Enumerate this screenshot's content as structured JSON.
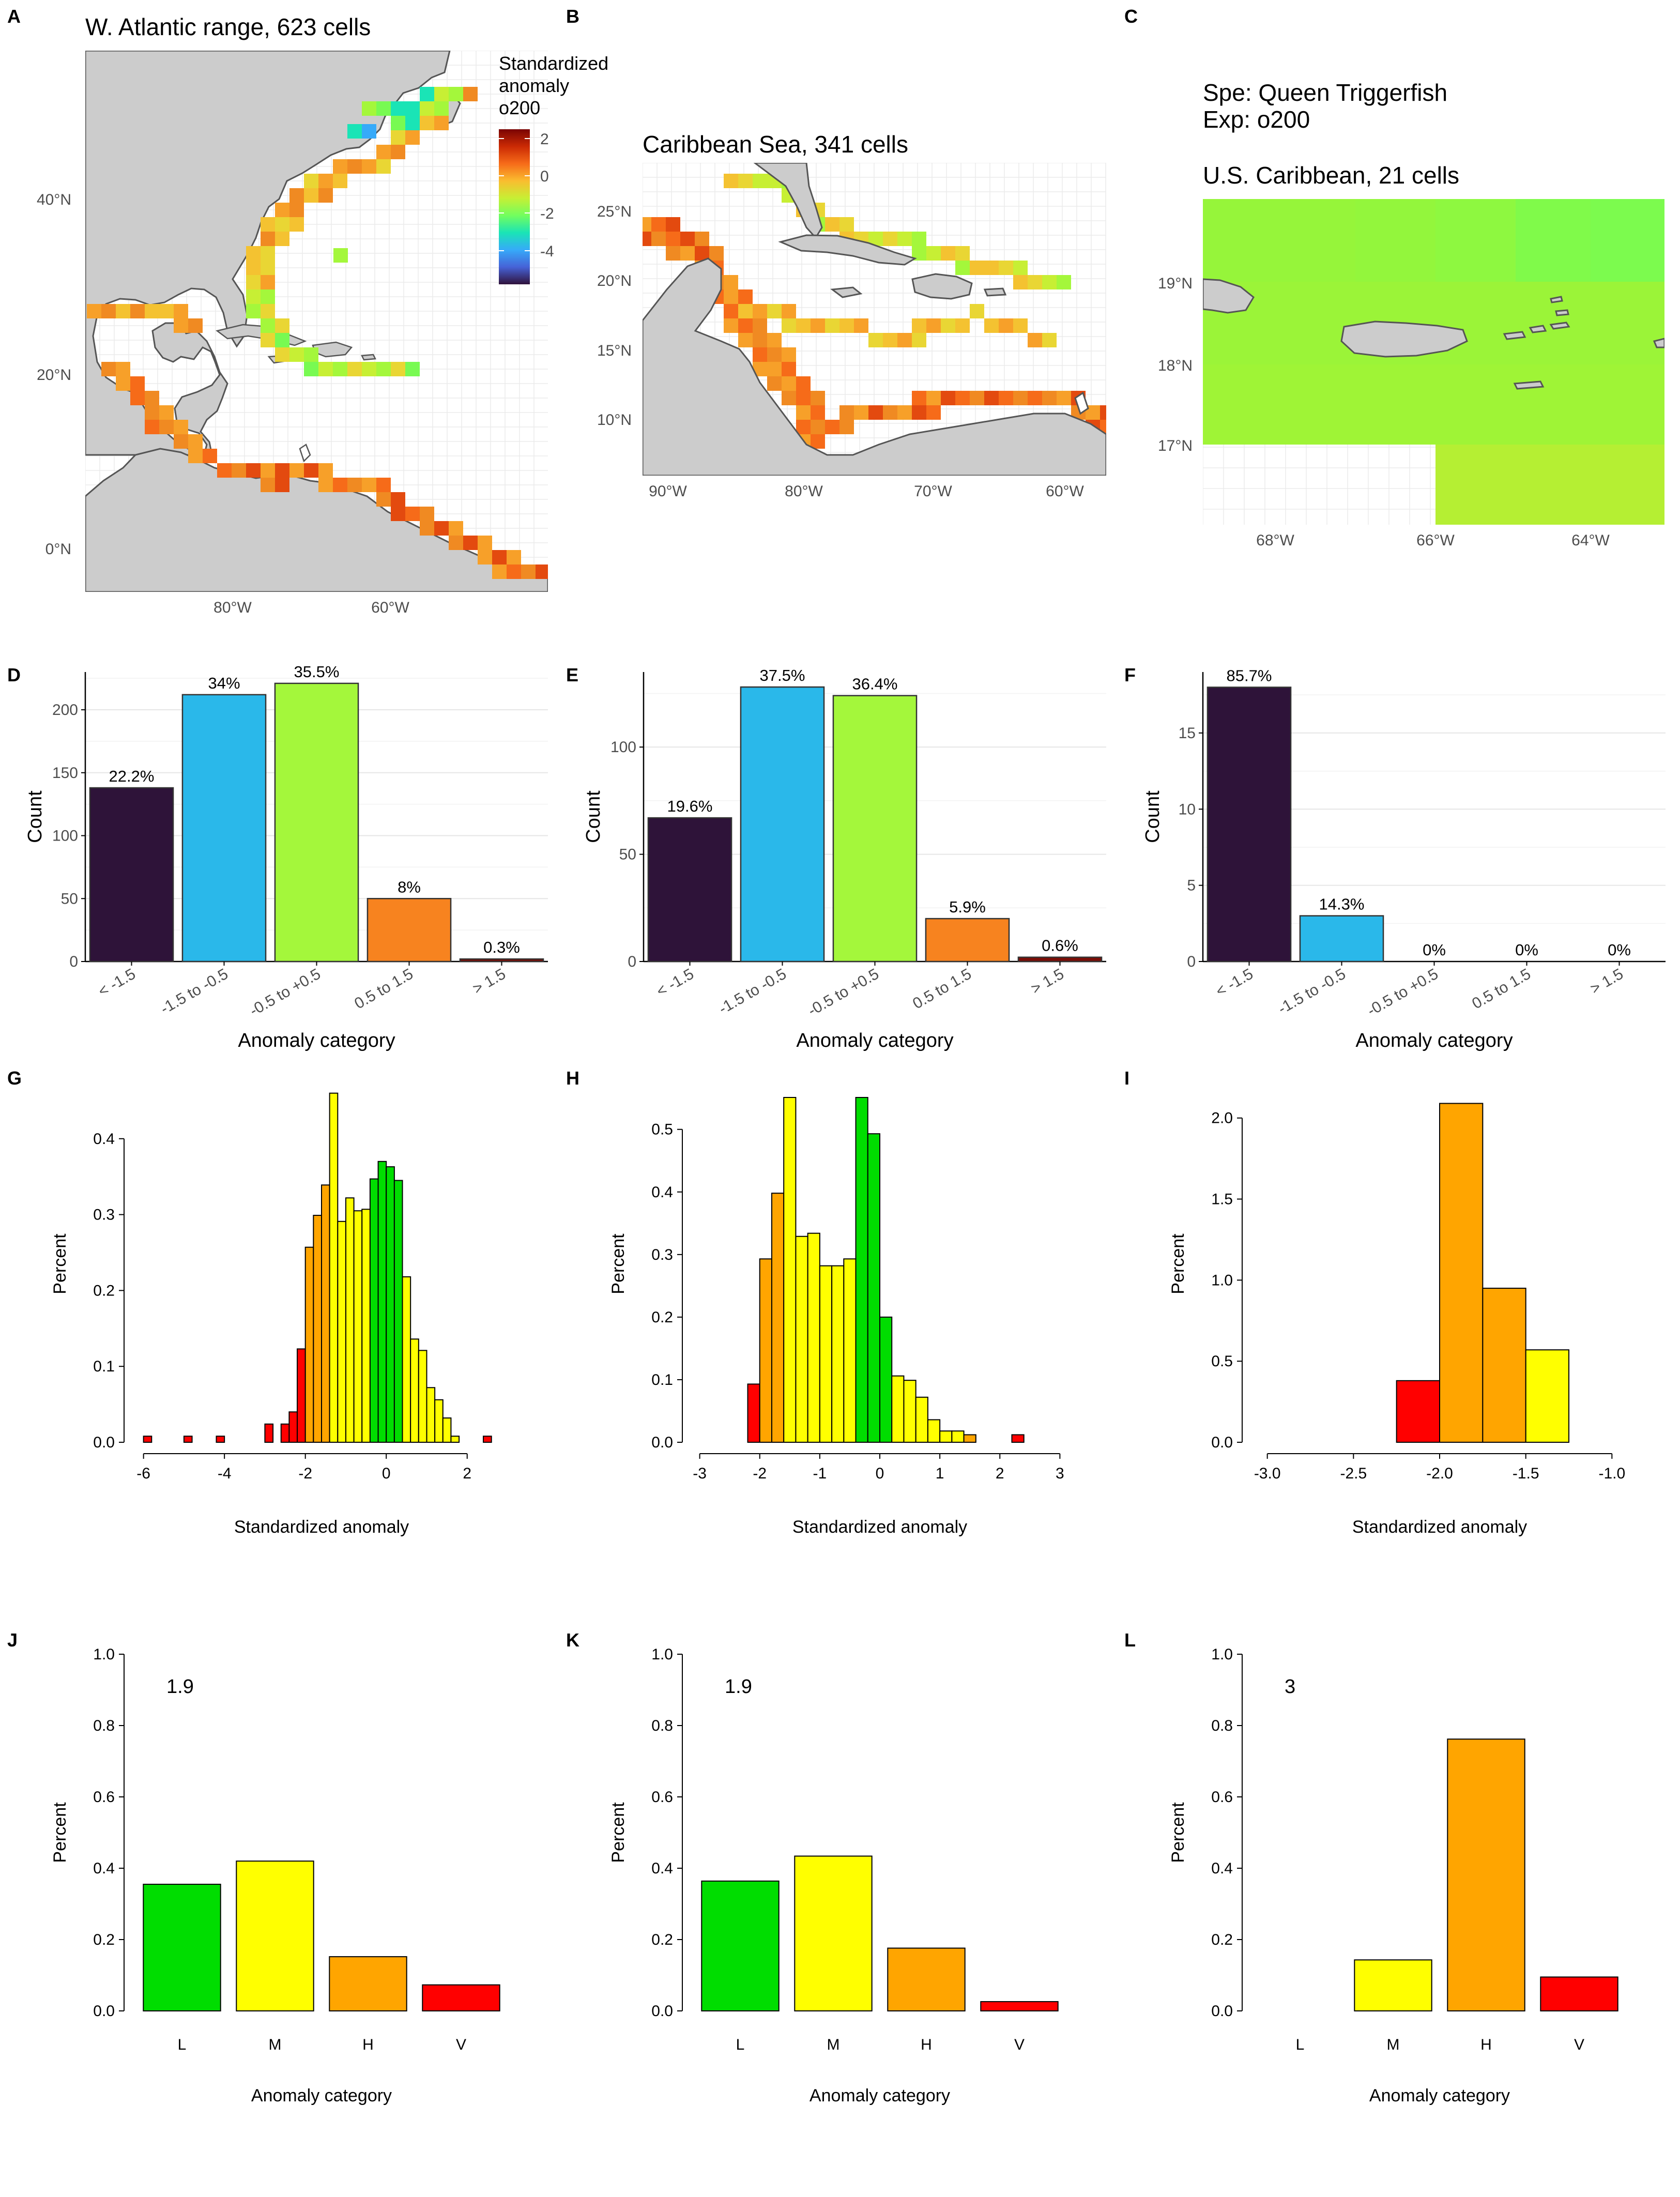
{
  "colors": {
    "land": "#cccccc",
    "land_stroke": "#555555",
    "cat_bar": [
      "#2e1339",
      "#2ab8ea",
      "#a4f73b",
      "#f7831f",
      "#7a0e07"
    ],
    "hist": {
      "red": "#ff0000",
      "orange": "#ffa500",
      "yellow": "#ffff00",
      "green": "#00dd00"
    },
    "legend_gradient": [
      "#30123b",
      "#4662d7",
      "#36aaf9",
      "#1ae4b6",
      "#72fe5e",
      "#c7ef34",
      "#fabd2f",
      "#f66b19",
      "#cb2a04",
      "#7a0403"
    ]
  },
  "maps": [
    {
      "label": "A",
      "title": "W. Atlantic range, 623 cells",
      "x_ticks": [
        "80°W",
        "60°W"
      ],
      "y_ticks": [
        "40°N",
        "20°N",
        "0°N"
      ],
      "legend": {
        "title_lines": [
          "Standardized",
          "anomaly",
          "o200"
        ],
        "ticks": [
          "2",
          "0",
          "-2",
          "-4"
        ]
      }
    },
    {
      "label": "B",
      "title": "Caribbean Sea, 341 cells",
      "x_ticks": [
        "90°W",
        "80°W",
        "70°W",
        "60°W"
      ],
      "y_ticks": [
        "25°N",
        "20°N",
        "15°N",
        "10°N"
      ]
    },
    {
      "label": "C",
      "title_lines": [
        "Spe: Queen Triggerfish",
        "Exp: o200",
        "",
        "U.S. Caribbean, 21 cells"
      ],
      "x_ticks": [
        "68°W",
        "66°W",
        "64°W"
      ],
      "y_ticks": [
        "19°N",
        "18°N",
        "17°N"
      ]
    }
  ],
  "chart_data": [
    {
      "label": "D",
      "type": "bar",
      "categories": [
        "< -1.5",
        "-1.5 to -0.5",
        "-0.5 to +0.5",
        "0.5 to 1.5",
        "> 1.5"
      ],
      "values": [
        138,
        212,
        221,
        50,
        2
      ],
      "data_labels": [
        "22.2%",
        "34%",
        "35.5%",
        "8%",
        "0.3%"
      ],
      "xlabel": "Anomaly category",
      "ylabel": "Count",
      "ylim": [
        0,
        230
      ],
      "y_ticks": [
        0,
        50,
        100,
        150,
        200
      ]
    },
    {
      "label": "E",
      "type": "bar",
      "categories": [
        "< -1.5",
        "-1.5 to -0.5",
        "-0.5 to +0.5",
        "0.5 to 1.5",
        "> 1.5"
      ],
      "values": [
        67,
        128,
        124,
        20,
        2
      ],
      "data_labels": [
        "19.6%",
        "37.5%",
        "36.4%",
        "5.9%",
        "0.6%"
      ],
      "xlabel": "Anomaly category",
      "ylabel": "Count",
      "ylim": [
        0,
        135
      ],
      "y_ticks": [
        0,
        50,
        100
      ]
    },
    {
      "label": "F",
      "type": "bar",
      "categories": [
        "< -1.5",
        "-1.5 to -0.5",
        "-0.5 to +0.5",
        "0.5 to 1.5",
        "> 1.5"
      ],
      "values": [
        18,
        3,
        0,
        0,
        0
      ],
      "data_labels": [
        "85.7%",
        "14.3%",
        "0%",
        "0%",
        "0%"
      ],
      "xlabel": "Anomaly category",
      "ylabel": "Count",
      "ylim": [
        0,
        19
      ],
      "y_ticks": [
        0,
        5,
        10,
        15
      ]
    },
    {
      "label": "G",
      "type": "histogram",
      "xlabel": "Standardized anomaly",
      "ylabel": "Percent",
      "xlim": [
        -6.2,
        3.0
      ],
      "ylim": [
        0,
        0.47
      ],
      "x_ticks": [
        -6,
        -4,
        -2,
        0,
        2
      ],
      "y_ticks": [
        0.0,
        0.1,
        0.2,
        0.3,
        0.4
      ],
      "bin_width": 0.2,
      "bins": [
        {
          "x0": -6.0,
          "h": 0.008,
          "c": "red"
        },
        {
          "x0": -5.0,
          "h": 0.008,
          "c": "red"
        },
        {
          "x0": -4.2,
          "h": 0.008,
          "c": "red"
        },
        {
          "x0": -3.0,
          "h": 0.024,
          "c": "red"
        },
        {
          "x0": -2.6,
          "h": 0.024,
          "c": "red"
        },
        {
          "x0": -2.4,
          "h": 0.04,
          "c": "red"
        },
        {
          "x0": -2.2,
          "h": 0.123,
          "c": "red"
        },
        {
          "x0": -2.0,
          "h": 0.257,
          "c": "orange"
        },
        {
          "x0": -1.8,
          "h": 0.299,
          "c": "orange"
        },
        {
          "x0": -1.6,
          "h": 0.339,
          "c": "orange"
        },
        {
          "x0": -1.4,
          "h": 0.46,
          "c": "yellow"
        },
        {
          "x0": -1.2,
          "h": 0.291,
          "c": "yellow"
        },
        {
          "x0": -1.0,
          "h": 0.322,
          "c": "yellow"
        },
        {
          "x0": -0.8,
          "h": 0.305,
          "c": "yellow"
        },
        {
          "x0": -0.6,
          "h": 0.307,
          "c": "yellow"
        },
        {
          "x0": -0.4,
          "h": 0.347,
          "c": "green"
        },
        {
          "x0": -0.2,
          "h": 0.37,
          "c": "green"
        },
        {
          "x0": 0.0,
          "h": 0.363,
          "c": "green"
        },
        {
          "x0": 0.2,
          "h": 0.345,
          "c": "green"
        },
        {
          "x0": 0.4,
          "h": 0.218,
          "c": "yellow"
        },
        {
          "x0": 0.6,
          "h": 0.136,
          "c": "yellow"
        },
        {
          "x0": 0.8,
          "h": 0.121,
          "c": "yellow"
        },
        {
          "x0": 1.0,
          "h": 0.072,
          "c": "yellow"
        },
        {
          "x0": 1.2,
          "h": 0.056,
          "c": "yellow"
        },
        {
          "x0": 1.4,
          "h": 0.032,
          "c": "yellow"
        },
        {
          "x0": 1.6,
          "h": 0.008,
          "c": "yellow"
        },
        {
          "x0": 2.4,
          "h": 0.008,
          "c": "red"
        }
      ]
    },
    {
      "label": "H",
      "type": "histogram",
      "xlabel": "Standardized anomaly",
      "ylabel": "Percent",
      "xlim": [
        -3.1,
        3.1
      ],
      "ylim": [
        0,
        0.57
      ],
      "x_ticks": [
        -3,
        -2,
        -1,
        0,
        1,
        2,
        3
      ],
      "y_ticks": [
        0.0,
        0.1,
        0.2,
        0.3,
        0.4,
        0.5
      ],
      "bin_width": 0.2,
      "bins": [
        {
          "x0": -2.2,
          "h": 0.093,
          "c": "red"
        },
        {
          "x0": -2.0,
          "h": 0.293,
          "c": "orange"
        },
        {
          "x0": -1.8,
          "h": 0.398,
          "c": "orange"
        },
        {
          "x0": -1.6,
          "h": 0.551,
          "c": "yellow"
        },
        {
          "x0": -1.4,
          "h": 0.329,
          "c": "yellow"
        },
        {
          "x0": -1.2,
          "h": 0.334,
          "c": "yellow"
        },
        {
          "x0": -1.0,
          "h": 0.282,
          "c": "yellow"
        },
        {
          "x0": -0.8,
          "h": 0.282,
          "c": "yellow"
        },
        {
          "x0": -0.6,
          "h": 0.293,
          "c": "yellow"
        },
        {
          "x0": -0.4,
          "h": 0.551,
          "c": "green"
        },
        {
          "x0": -0.2,
          "h": 0.493,
          "c": "green"
        },
        {
          "x0": 0.0,
          "h": 0.2,
          "c": "green"
        },
        {
          "x0": 0.2,
          "h": 0.106,
          "c": "yellow"
        },
        {
          "x0": 0.4,
          "h": 0.099,
          "c": "yellow"
        },
        {
          "x0": 0.6,
          "h": 0.072,
          "c": "yellow"
        },
        {
          "x0": 0.8,
          "h": 0.036,
          "c": "yellow"
        },
        {
          "x0": 1.0,
          "h": 0.018,
          "c": "yellow"
        },
        {
          "x0": 1.2,
          "h": 0.018,
          "c": "yellow"
        },
        {
          "x0": 1.4,
          "h": 0.012,
          "c": "orange"
        },
        {
          "x0": 2.2,
          "h": 0.012,
          "c": "red"
        }
      ]
    },
    {
      "label": "I",
      "type": "histogram",
      "xlabel": "Standardized anomaly",
      "ylabel": "Percent",
      "xlim": [
        -3.08,
        -0.92
      ],
      "ylim": [
        0,
        2.2
      ],
      "x_ticks": [
        -3.0,
        -2.5,
        -2.0,
        -1.5,
        -1.0
      ],
      "y_ticks": [
        0.0,
        0.5,
        1.0,
        1.5,
        2.0
      ],
      "bin_width": 0.25,
      "bins": [
        {
          "x0": -2.25,
          "h": 0.38,
          "c": "red"
        },
        {
          "x0": -2.0,
          "h": 2.09,
          "c": "orange"
        },
        {
          "x0": -1.75,
          "h": 0.95,
          "c": "orange"
        },
        {
          "x0": -1.5,
          "h": 0.57,
          "c": "yellow"
        }
      ]
    },
    {
      "label": "J",
      "type": "bar",
      "categories": [
        "L",
        "M",
        "H",
        "V"
      ],
      "values": [
        0.355,
        0.42,
        0.152,
        0.073
      ],
      "bar_colors": [
        "green",
        "yellow",
        "orange",
        "red"
      ],
      "annotation": "1.9",
      "xlabel": "Anomaly category",
      "ylabel": "Percent",
      "ylim": [
        0,
        1.0
      ],
      "y_ticks": [
        0.0,
        0.2,
        0.4,
        0.6,
        0.8,
        1.0
      ]
    },
    {
      "label": "K",
      "type": "bar",
      "categories": [
        "L",
        "M",
        "H",
        "V"
      ],
      "values": [
        0.364,
        0.434,
        0.176,
        0.026
      ],
      "bar_colors": [
        "green",
        "yellow",
        "orange",
        "red"
      ],
      "annotation": "1.9",
      "xlabel": "Anomaly category",
      "ylabel": "Percent",
      "ylim": [
        0,
        1.0
      ],
      "y_ticks": [
        0.0,
        0.2,
        0.4,
        0.6,
        0.8,
        1.0
      ]
    },
    {
      "label": "L",
      "type": "bar",
      "categories": [
        "L",
        "M",
        "H",
        "V"
      ],
      "values": [
        0.0,
        0.143,
        0.762,
        0.095
      ],
      "bar_colors": [
        "green",
        "yellow",
        "orange",
        "red"
      ],
      "annotation": "3",
      "xlabel": "Anomaly category",
      "ylabel": "Percent",
      "ylim": [
        0,
        1.0
      ],
      "y_ticks": [
        0.0,
        0.2,
        0.4,
        0.6,
        0.8,
        1.0
      ]
    }
  ]
}
